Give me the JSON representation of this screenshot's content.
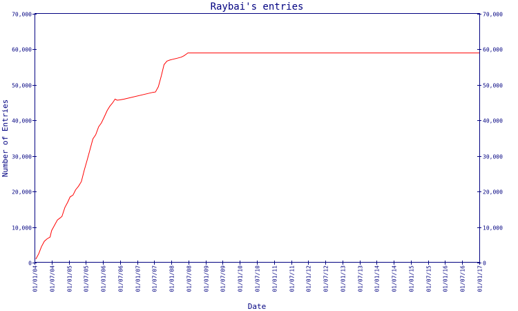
{
  "chart_data": {
    "type": "line",
    "title": "Raybai's entries",
    "xlabel": "Date",
    "ylabel": "Number of Entries",
    "ylim": [
      0,
      70000
    ],
    "y_ticks": [
      "0",
      "10,000",
      "20,000",
      "30,000",
      "40,000",
      "50,000",
      "60,000",
      "70,000"
    ],
    "y_tick_values": [
      0,
      10000,
      20000,
      30000,
      40000,
      50000,
      60000,
      70000
    ],
    "x_ticks": [
      "01/01/04",
      "01/07/04",
      "01/01/05",
      "01/07/05",
      "01/01/06",
      "01/07/06",
      "01/01/07",
      "01/07/07",
      "01/01/08",
      "01/07/08",
      "01/01/09",
      "01/07/09",
      "01/01/10",
      "01/07/10",
      "01/01/11",
      "01/07/11",
      "01/01/12",
      "01/07/12",
      "01/01/13",
      "01/07/13",
      "01/01/14",
      "01/07/14",
      "01/01/15",
      "01/07/15",
      "01/01/16",
      "01/07/16",
      "01/01/17"
    ],
    "xlim": [
      "2004-01-01",
      "2017-01-01"
    ],
    "grid": false,
    "line_color": "#ff0000",
    "axis_color": "#000080",
    "series": [
      {
        "x": [
          "2004-01-15",
          "2004-02-15",
          "2004-03-15",
          "2004-04-15",
          "2004-05-15",
          "2004-06-15",
          "2004-07-01",
          "2004-09-01",
          "2004-10-01",
          "2004-10-20",
          "2004-11-20",
          "2004-12-20",
          "2005-01-15",
          "2005-02-15",
          "2005-03-15",
          "2005-04-15",
          "2005-05-15",
          "2005-06-15",
          "2005-07-15",
          "2005-08-15",
          "2005-09-15",
          "2005-10-15",
          "2005-11-15",
          "2005-12-15",
          "2006-01-15",
          "2006-02-15",
          "2006-03-15",
          "2006-04-15",
          "2006-05-10",
          "2006-06-01",
          "2006-07-01",
          "2006-08-15",
          "2007-05-15",
          "2007-06-15",
          "2007-07-15",
          "2007-08-15",
          "2007-09-15",
          "2007-10-15",
          "2007-11-15",
          "2007-12-15",
          "2008-01-15",
          "2008-03-01",
          "2008-04-15",
          "2008-05-15",
          "2008-06-10",
          "2008-06-25",
          "2008-07-15",
          "2017-01-01"
        ],
        "y": [
          1000,
          2500,
          4500,
          6000,
          6700,
          7200,
          9000,
          12000,
          12600,
          13000,
          15500,
          17000,
          18500,
          19000,
          20500,
          21500,
          22800,
          26000,
          28800,
          31800,
          34800,
          36000,
          38200,
          39300,
          41000,
          42800,
          44000,
          45000,
          46000,
          45700,
          45800,
          46000,
          47700,
          47900,
          48000,
          49500,
          52500,
          55700,
          56700,
          57000,
          57200,
          57500,
          57800,
          58200,
          58700,
          59000,
          59000,
          59000
        ]
      }
    ]
  }
}
